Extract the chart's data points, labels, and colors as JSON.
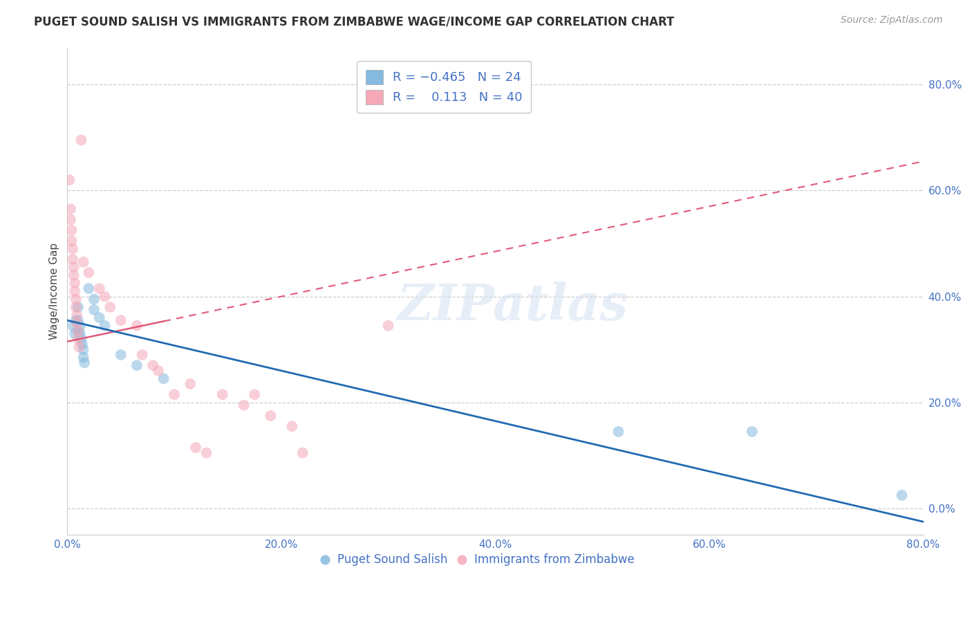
{
  "title": "PUGET SOUND SALISH VS IMMIGRANTS FROM ZIMBABWE WAGE/INCOME GAP CORRELATION CHART",
  "source": "Source: ZipAtlas.com",
  "ylabel": "Wage/Income Gap",
  "xlim": [
    0.0,
    0.8
  ],
  "ylim": [
    -0.05,
    0.87
  ],
  "legend_items": [
    {
      "label_r": "R = ",
      "label_val": "-0.465",
      "label_n": "  N = ",
      "label_nval": "24",
      "color": "#aec6e8"
    },
    {
      "label_r": "R = ",
      "label_val": " 0.113",
      "label_n": "  N = ",
      "label_nval": "40",
      "color": "#f4b8c1"
    }
  ],
  "blue_scatter": [
    [
      0.005,
      0.345
    ],
    [
      0.007,
      0.33
    ],
    [
      0.008,
      0.355
    ],
    [
      0.01,
      0.38
    ],
    [
      0.01,
      0.355
    ],
    [
      0.01,
      0.335
    ],
    [
      0.012,
      0.345
    ],
    [
      0.012,
      0.33
    ],
    [
      0.013,
      0.32
    ],
    [
      0.014,
      0.31
    ],
    [
      0.015,
      0.3
    ],
    [
      0.015,
      0.285
    ],
    [
      0.016,
      0.275
    ],
    [
      0.02,
      0.415
    ],
    [
      0.025,
      0.395
    ],
    [
      0.025,
      0.375
    ],
    [
      0.03,
      0.36
    ],
    [
      0.035,
      0.345
    ],
    [
      0.05,
      0.29
    ],
    [
      0.065,
      0.27
    ],
    [
      0.09,
      0.245
    ],
    [
      0.515,
      0.145
    ],
    [
      0.64,
      0.145
    ],
    [
      0.78,
      0.025
    ]
  ],
  "pink_scatter": [
    [
      0.002,
      0.62
    ],
    [
      0.003,
      0.565
    ],
    [
      0.003,
      0.545
    ],
    [
      0.004,
      0.525
    ],
    [
      0.004,
      0.505
    ],
    [
      0.005,
      0.49
    ],
    [
      0.005,
      0.47
    ],
    [
      0.006,
      0.455
    ],
    [
      0.006,
      0.44
    ],
    [
      0.007,
      0.425
    ],
    [
      0.007,
      0.41
    ],
    [
      0.008,
      0.395
    ],
    [
      0.008,
      0.38
    ],
    [
      0.009,
      0.365
    ],
    [
      0.009,
      0.35
    ],
    [
      0.01,
      0.335
    ],
    [
      0.01,
      0.32
    ],
    [
      0.011,
      0.305
    ],
    [
      0.013,
      0.695
    ],
    [
      0.015,
      0.465
    ],
    [
      0.02,
      0.445
    ],
    [
      0.03,
      0.415
    ],
    [
      0.035,
      0.4
    ],
    [
      0.04,
      0.38
    ],
    [
      0.05,
      0.355
    ],
    [
      0.065,
      0.345
    ],
    [
      0.07,
      0.29
    ],
    [
      0.08,
      0.27
    ],
    [
      0.085,
      0.26
    ],
    [
      0.1,
      0.215
    ],
    [
      0.115,
      0.235
    ],
    [
      0.12,
      0.115
    ],
    [
      0.13,
      0.105
    ],
    [
      0.145,
      0.215
    ],
    [
      0.165,
      0.195
    ],
    [
      0.175,
      0.215
    ],
    [
      0.19,
      0.175
    ],
    [
      0.21,
      0.155
    ],
    [
      0.22,
      0.105
    ],
    [
      0.3,
      0.345
    ]
  ],
  "blue_line_x": [
    0.0,
    0.8
  ],
  "blue_line_y": [
    0.355,
    -0.025
  ],
  "pink_line_x": [
    0.0,
    0.8
  ],
  "pink_line_y": [
    0.315,
    0.655
  ],
  "pink_line_solid_end": 0.09,
  "blue_scatter_color": "#85b9de",
  "pink_scatter_color": "#f4a8b8",
  "blue_line_color": "#1f6ab0",
  "pink_line_color": "#e05878",
  "grid_color": "#c8c8c8",
  "background_color": "#ffffff",
  "watermark_text": "ZIPatlas",
  "scatter_size": 130,
  "scatter_alpha": 0.55,
  "xtick_vals": [
    0.0,
    0.2,
    0.4,
    0.6,
    0.8
  ],
  "ytick_vals": [
    0.0,
    0.2,
    0.4,
    0.6,
    0.8
  ],
  "tick_color": "#4472c4",
  "tick_fontsize": 11,
  "title_fontsize": 12,
  "source_fontsize": 10,
  "ylabel_fontsize": 11,
  "bottom_legend_labels": [
    "Puget Sound Salish",
    "Immigrants from Zimbabwe"
  ]
}
